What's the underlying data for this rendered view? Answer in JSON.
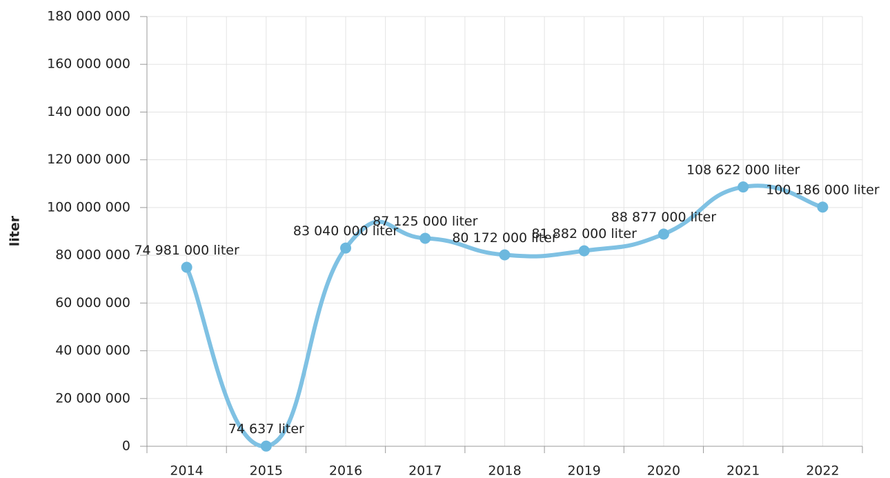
{
  "chart_data": {
    "type": "line",
    "y_label": "liter",
    "categories": [
      "2014",
      "2015",
      "2016",
      "2017",
      "2018",
      "2019",
      "2020",
      "2021",
      "2022"
    ],
    "values": [
      74981000,
      74637,
      83040000,
      87125000,
      80172000,
      81882000,
      88877000,
      108622000,
      100186000
    ],
    "value_labels": [
      "74 981 000 liter",
      "74 637 liter",
      "83 040 000 liter",
      "87 125 000 liter",
      "80 172 000 liter",
      "81 882 000 liter",
      "88 877 000 liter",
      "108 622 000 liter",
      "100 186 000 liter"
    ],
    "color": "#7fc1e3",
    "ylim": [
      0,
      180000000
    ],
    "yticks": [
      0,
      {
        "value": 20000000,
        "label": "20 000 000"
      },
      {
        "value": 40000000,
        "label": "40 000 000"
      },
      {
        "value": 60000000,
        "label": "60 000 000"
      },
      {
        "value": 80000000,
        "label": "80 000 000"
      },
      {
        "value": 100000000,
        "label": "100 000 000"
      },
      {
        "value": 120000000,
        "label": "120 000 000"
      },
      {
        "value": 140000000,
        "label": "140 000 000"
      },
      {
        "value": 160000000,
        "label": "160 000 000"
      },
      {
        "value": 180000000,
        "label": "180 000 000"
      }
    ],
    "grid": true
  }
}
